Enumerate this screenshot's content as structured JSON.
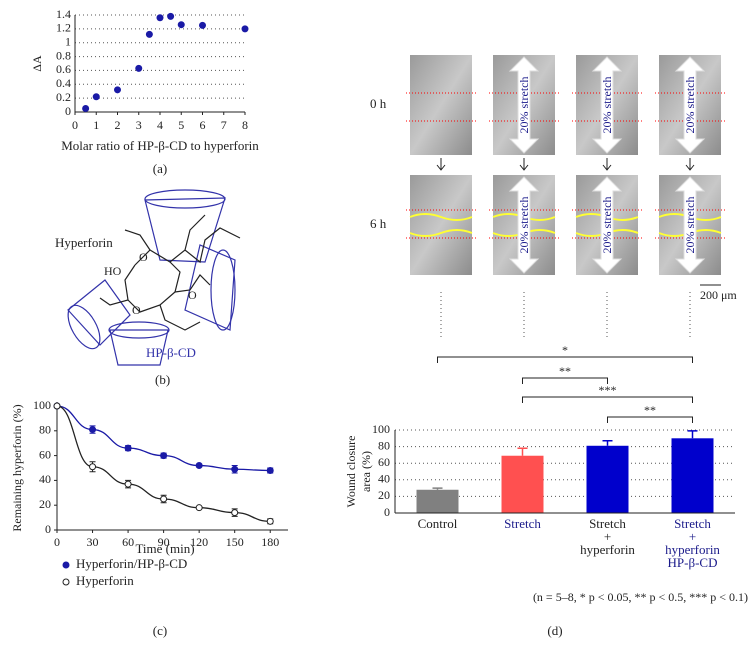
{
  "chart_data": [
    {
      "type": "scatter",
      "caption": "(a)",
      "x_label": "Molar ratio of HP-β-CD to hyperforin",
      "y_label": "ΔA",
      "x": [
        0.5,
        1,
        2,
        3,
        3.5,
        4,
        4.5,
        5,
        6,
        8
      ],
      "values": [
        0.05,
        0.22,
        0.32,
        0.63,
        1.12,
        1.36,
        1.38,
        1.26,
        1.25,
        1.2
      ],
      "color": "#1a1aa6",
      "xlim": [
        0,
        8
      ],
      "ylim": [
        0,
        1.4
      ],
      "xticks": [
        0,
        1,
        2,
        3,
        4,
        5,
        6,
        7,
        8
      ],
      "yticks": [
        0,
        0.2,
        0.4,
        0.6,
        0.8,
        1,
        1.2,
        1.4
      ],
      "grid": true
    },
    {
      "type": "line",
      "caption": "(c)",
      "x_label": "Time (min)",
      "y_label": "Remaining hyperforin (%)",
      "x": [
        0,
        30,
        60,
        90,
        120,
        150,
        180
      ],
      "series": [
        {
          "name": "Hyperforin/HP-β-CD",
          "color": "#1a1aa6",
          "marker": "filled",
          "values": [
            100,
            81,
            66,
            60,
            52,
            49,
            48
          ],
          "errors": [
            0,
            3,
            2,
            2,
            1,
            3,
            2
          ]
        },
        {
          "name": "Hyperforin",
          "color": "#222222",
          "marker": "open",
          "values": [
            100,
            51,
            37,
            25,
            18,
            14,
            7
          ],
          "errors": [
            0,
            4,
            3,
            3,
            1,
            3,
            2
          ]
        }
      ],
      "xlim": [
        0,
        195
      ],
      "ylim": [
        0,
        100
      ],
      "xticks": [
        0,
        30,
        60,
        90,
        120,
        150,
        180
      ],
      "yticks": [
        0,
        20,
        40,
        60,
        80,
        100
      ],
      "grid": false
    },
    {
      "type": "bar",
      "caption": "(d)",
      "y_label": [
        "Wound closure",
        "area (%)"
      ],
      "categories": [
        [
          "Control"
        ],
        [
          "Stretch"
        ],
        [
          "Stretch",
          "+",
          "hyperforin"
        ],
        [
          "Stretch",
          "+",
          "hyperforin",
          "HP-β-CD"
        ]
      ],
      "category_colors": [
        "#222222",
        "#1a1a8a",
        "#222222",
        "#1a1a8a"
      ],
      "values": [
        28,
        69,
        81,
        90
      ],
      "errors": [
        2,
        9,
        6,
        9
      ],
      "colors": [
        "#808080",
        "#ff5050",
        "#0000cc",
        "#0000cc"
      ],
      "ylim": [
        0,
        100
      ],
      "yticks": [
        0,
        20,
        40,
        60,
        80,
        100
      ],
      "grid": true,
      "significance": [
        {
          "from": 0,
          "to": 3,
          "label": "*"
        },
        {
          "from": 1,
          "to": 2,
          "label": "**"
        },
        {
          "from": 1,
          "to": 3,
          "label": "***"
        },
        {
          "from": 2,
          "to": 3,
          "label": "**"
        }
      ],
      "footnote": "(n = 5–8, * p < 0.05, ** p < 0.5, *** p < 0.1)"
    }
  ],
  "diagram": {
    "caption": "(b)",
    "molecule_label": "Hyperforin",
    "host_label": "HP-β-CD",
    "atom_labels": [
      "O",
      "HO",
      "O",
      "O"
    ]
  },
  "micrographs": {
    "row_labels": [
      "0 h",
      "6 h"
    ],
    "stretch_label": "20% stretch",
    "scale_bar": "200 μm"
  }
}
